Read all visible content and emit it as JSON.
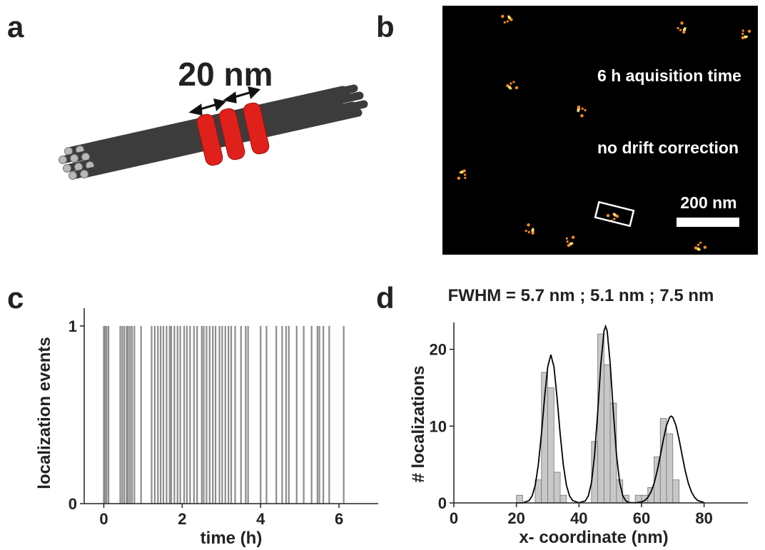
{
  "panels": [
    "a",
    "b",
    "c",
    "d"
  ],
  "panel_a": {
    "label": "20 nm"
  },
  "panel_b": {
    "annotations": [
      "6 h aquisition time",
      "no drift correction"
    ],
    "scale_bar": "200 nm"
  },
  "chart_data": [
    {
      "type": "event",
      "xlabel": "time (h)",
      "ylabel": "localization events",
      "x": [
        0.0,
        0.03,
        0.07,
        0.12,
        0.42,
        0.47,
        0.52,
        0.58,
        0.62,
        0.67,
        0.72,
        0.78,
        0.95,
        1.22,
        1.3,
        1.38,
        1.45,
        1.52,
        1.6,
        1.68,
        1.72,
        1.8,
        1.88,
        1.95,
        2.05,
        2.12,
        2.2,
        2.3,
        2.38,
        2.5,
        2.55,
        2.62,
        2.7,
        2.78,
        2.85,
        2.95,
        3.02,
        3.1,
        3.18,
        3.25,
        3.35,
        3.5,
        3.62,
        3.68,
        4.0,
        4.15,
        4.4,
        4.55,
        4.65,
        4.72,
        4.92,
        5.1,
        5.3,
        5.45,
        5.5,
        5.6,
        5.75,
        6.12
      ],
      "values": [
        1,
        1,
        1,
        1,
        1,
        1,
        1,
        1,
        1,
        1,
        1,
        1,
        1,
        1,
        1,
        1,
        1,
        1,
        1,
        1,
        1,
        1,
        1,
        1,
        1,
        1,
        1,
        1,
        1,
        1,
        1,
        1,
        1,
        1,
        1,
        1,
        1,
        1,
        1,
        1,
        1,
        1,
        1,
        1,
        1,
        1,
        1,
        1,
        1,
        1,
        1,
        1,
        1,
        1,
        1,
        1,
        1,
        1
      ],
      "color": "#8c8c8c",
      "xlim": [
        -0.5,
        7
      ],
      "ylim": [
        0,
        1.1
      ],
      "xticks": [
        0,
        2,
        4,
        6
      ],
      "yticks": [
        0,
        1
      ]
    },
    {
      "type": "histogram",
      "title": "FWHM = 5.7 nm ; 5.1 nm ; 7.5 nm",
      "xlabel": "x- coordinate (nm)",
      "ylabel": "# localizations",
      "bins": [
        20,
        22,
        24,
        26,
        28,
        30,
        32,
        34,
        36,
        38,
        40,
        42,
        44,
        46,
        48,
        50,
        52,
        54,
        56,
        58,
        60,
        62,
        64,
        66,
        68,
        70,
        72,
        74,
        76
      ],
      "values": [
        1,
        0,
        0,
        3,
        17,
        15,
        4,
        1,
        0,
        0,
        0,
        0,
        8,
        22,
        18,
        13,
        3,
        1,
        0,
        1,
        1,
        2,
        6,
        11,
        9,
        3,
        0,
        0
      ],
      "color": "#c8c8c8",
      "fit": {
        "x": [
          20,
          22,
          24,
          25,
          26,
          27,
          28,
          29,
          30,
          31,
          32,
          33,
          34,
          35,
          36,
          37,
          38,
          40,
          42,
          43,
          44,
          45,
          46,
          47,
          48,
          48.5,
          49,
          50,
          51,
          52,
          53,
          54,
          55,
          56,
          58,
          60,
          61,
          62,
          63,
          64,
          65,
          66,
          67,
          68,
          69,
          69.5,
          70,
          71,
          72,
          73,
          74,
          75,
          76,
          77,
          78,
          80
        ],
        "values": [
          0,
          0,
          0.3,
          0.89,
          2.28,
          4.93,
          8.95,
          13.7,
          17.7,
          19.3,
          17.7,
          13.7,
          8.95,
          4.93,
          2.28,
          0.89,
          0.3,
          0.03,
          0.26,
          0.93,
          2.68,
          6.26,
          11.85,
          18.1,
          22.4,
          23,
          22.4,
          18.1,
          11.85,
          6.26,
          2.68,
          0.93,
          0.26,
          0.06,
          0.02,
          0.13,
          0.31,
          0.7,
          1.4,
          2.53,
          4.15,
          6.16,
          8.29,
          10.1,
          11.16,
          11.3,
          11.16,
          10.1,
          8.29,
          6.16,
          4.15,
          2.53,
          1.4,
          0.7,
          0.31,
          0.05
        ],
        "color": "#000000"
      },
      "xlim": [
        0,
        94
      ],
      "ylim": [
        0,
        23.5
      ],
      "xticks": [
        0,
        20,
        40,
        60,
        80
      ],
      "yticks": [
        0,
        10,
        20
      ]
    }
  ]
}
